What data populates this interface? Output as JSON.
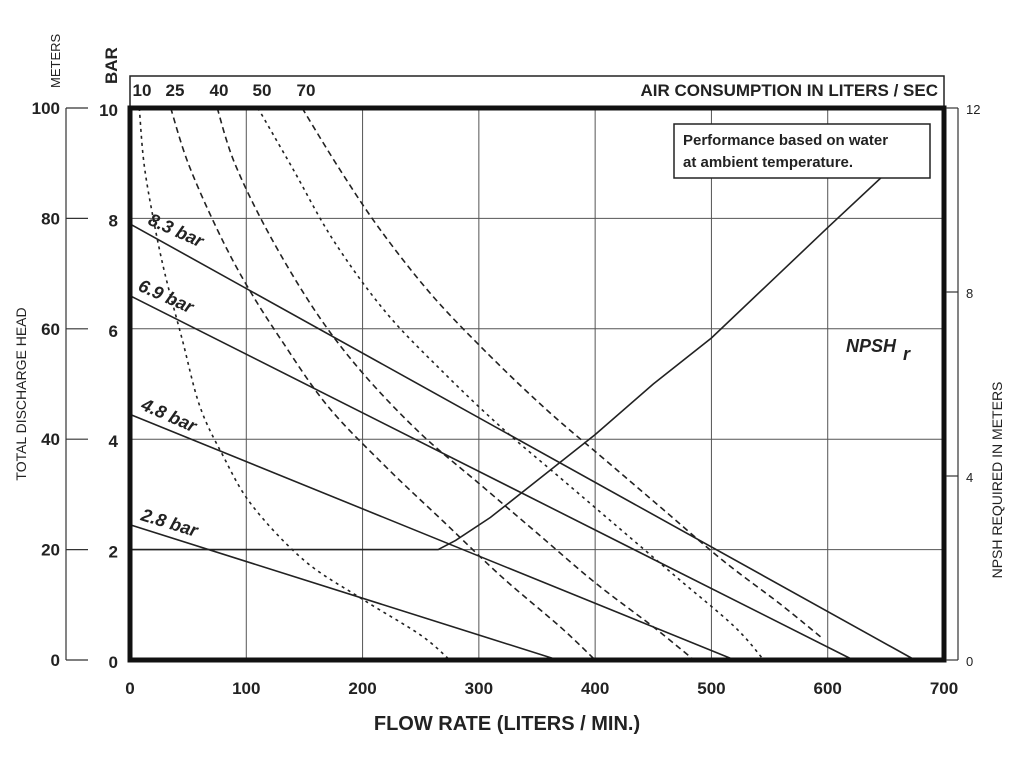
{
  "chart_data": {
    "type": "line",
    "xlabel": "FLOW RATE (LITERS / MIN.)",
    "x_ticks": [
      "0",
      "100",
      "200",
      "300",
      "400",
      "500",
      "600",
      "700"
    ],
    "xlim": [
      0,
      700
    ],
    "left_axis_outer": {
      "unit": "METERS",
      "label": "TOTAL DISCHARGE HEAD",
      "ticks": [
        "0",
        "20",
        "40",
        "60",
        "80",
        "100"
      ],
      "lim": [
        0,
        100
      ]
    },
    "left_axis_inner": {
      "unit": "BAR",
      "ticks": [
        "0",
        "2",
        "4",
        "6",
        "8",
        "10"
      ],
      "lim": [
        0,
        10
      ]
    },
    "right_axis": {
      "label": "NPSH REQUIRED IN METERS",
      "ticks": [
        "0",
        "4",
        "8",
        "12"
      ],
      "lim": [
        0,
        12
      ]
    },
    "top_axis": {
      "label": "AIR CONSUMPTION IN LITERS / SEC",
      "ticks": [
        "10",
        "25",
        "40",
        "50",
        "70"
      ]
    },
    "note": [
      "Performance based on water",
      "at ambient temperature."
    ],
    "series": [
      {
        "name": "8.3 bar",
        "kind": "air-pressure",
        "x": [
          0,
          675
        ],
        "y_bar": [
          7.9,
          0
        ]
      },
      {
        "name": "6.9 bar",
        "kind": "air-pressure",
        "x": [
          0,
          622
        ],
        "y_bar": [
          6.6,
          0
        ]
      },
      {
        "name": "4.8 bar",
        "kind": "air-pressure",
        "x": [
          0,
          520
        ],
        "y_bar": [
          4.45,
          0
        ]
      },
      {
        "name": "2.8 bar",
        "kind": "air-pressure",
        "x": [
          0,
          368
        ],
        "y_bar": [
          2.45,
          0
        ]
      },
      {
        "name": "NPSH",
        "name_sub": "r",
        "kind": "npsh",
        "x": [
          0,
          265,
          280,
          310,
          350,
          400,
          450,
          500,
          550,
          600,
          655
        ],
        "y_m": [
          2.4,
          2.4,
          2.6,
          3.1,
          3.9,
          4.9,
          6.0,
          7.0,
          8.2,
          9.4,
          10.7
        ]
      },
      {
        "name": "10",
        "kind": "air-consumption",
        "x": [
          8,
          12,
          20,
          30,
          45,
          60,
          80,
          105,
          150,
          200,
          250,
          275
        ],
        "y_bar": [
          10,
          9.0,
          8.0,
          7.0,
          5.8,
          4.6,
          3.7,
          2.8,
          1.8,
          1.1,
          0.45,
          0
        ]
      },
      {
        "name": "25",
        "kind": "air-consumption",
        "x": [
          35,
          50,
          75,
          100,
          130,
          170,
          220,
          270,
          320,
          370,
          400
        ],
        "y_bar": [
          10,
          9.0,
          7.8,
          6.8,
          5.8,
          4.6,
          3.5,
          2.5,
          1.5,
          0.6,
          0
        ]
      },
      {
        "name": "40",
        "kind": "air-consumption",
        "x": [
          75,
          90,
          120,
          160,
          200,
          250,
          300,
          350,
          400,
          450,
          485
        ],
        "y_bar": [
          10,
          9.0,
          7.7,
          6.3,
          5.2,
          4.1,
          3.2,
          2.3,
          1.4,
          0.6,
          0
        ]
      },
      {
        "name": "50",
        "kind": "air-consumption",
        "x": [
          110,
          140,
          175,
          220,
          270,
          320,
          370,
          420,
          470,
          520,
          545
        ],
        "y_bar": [
          10,
          8.9,
          7.6,
          6.3,
          5.2,
          4.2,
          3.3,
          2.4,
          1.5,
          0.6,
          0
        ]
      },
      {
        "name": "70",
        "kind": "air-consumption",
        "x": [
          148,
          180,
          215,
          260,
          310,
          360,
          410,
          460,
          510,
          560,
          595
        ],
        "y_bar": [
          10,
          8.9,
          7.8,
          6.6,
          5.5,
          4.5,
          3.6,
          2.7,
          1.8,
          1.0,
          0.4
        ]
      }
    ]
  }
}
